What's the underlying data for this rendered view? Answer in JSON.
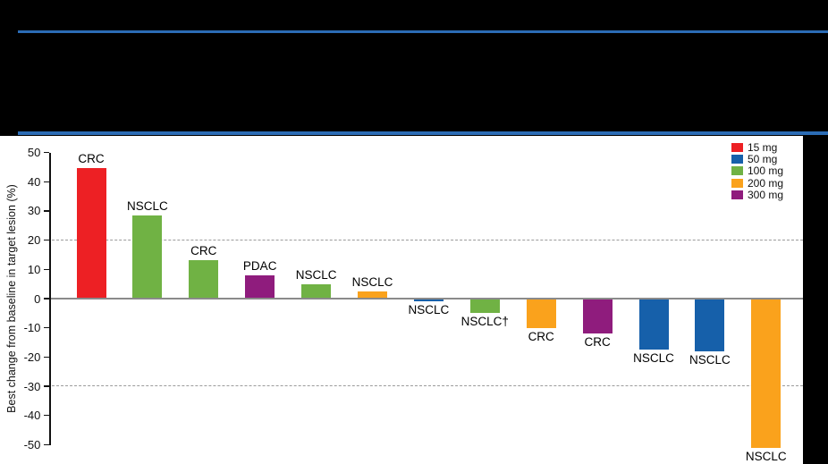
{
  "header": {
    "rule_color": "#2b6cb5"
  },
  "chart_data": {
    "type": "bar",
    "subtype": "waterfall",
    "title": "",
    "xlabel": "",
    "ylabel": "Best change from baseline in target lesion (%)",
    "ylim": [
      -50,
      50
    ],
    "ytick_step": 10,
    "yticks": [
      50,
      40,
      30,
      20,
      10,
      0,
      -10,
      -20,
      -30,
      -40,
      -50
    ],
    "grid": "dashed horizontal lines at 20 and -30",
    "gridlines_dashed_at": [
      20,
      -30
    ],
    "baseline_at": 0,
    "legend": {
      "position": "top-right",
      "entries": [
        {
          "label": "15 mg",
          "color": "#ed2024"
        },
        {
          "label": "50 mg",
          "color": "#1660aa"
        },
        {
          "label": "100 mg",
          "color": "#70b244"
        },
        {
          "label": "200 mg",
          "color": "#faa21c"
        },
        {
          "label": "300 mg",
          "color": "#8f1c7d"
        }
      ]
    },
    "bars": [
      {
        "label": "CRC",
        "dose": "15 mg",
        "value": 44.5
      },
      {
        "label": "NSCLC",
        "dose": "100 mg",
        "value": 28.5
      },
      {
        "label": "CRC",
        "dose": "100 mg",
        "value": 13
      },
      {
        "label": "PDAC",
        "dose": "300 mg",
        "value": 8
      },
      {
        "label": "NSCLC",
        "dose": "100 mg",
        "value": 5
      },
      {
        "label": "NSCLC",
        "dose": "200 mg",
        "value": 2.5
      },
      {
        "label": "NSCLC",
        "dose": "50 mg",
        "value": -1
      },
      {
        "label": "NSCLC†",
        "dose": "100 mg",
        "value": -5
      },
      {
        "label": "CRC",
        "dose": "200 mg",
        "value": -10
      },
      {
        "label": "CRC",
        "dose": "300 mg",
        "value": -12
      },
      {
        "label": "NSCLC",
        "dose": "50 mg",
        "value": -17.5
      },
      {
        "label": "NSCLC",
        "dose": "50 mg",
        "value": -18
      },
      {
        "label": "NSCLC",
        "dose": "200 mg",
        "value": -51
      }
    ]
  }
}
